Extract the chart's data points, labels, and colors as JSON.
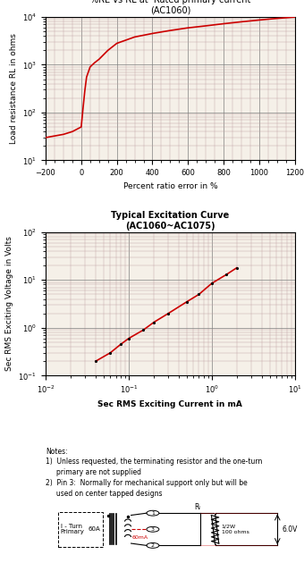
{
  "chart1_title": "%RE vs RL at  Rated primary current\n(AC1060)",
  "chart1_xlabel": "Percent ratio error in %",
  "chart1_ylabel": "Load resistance RL in ohms",
  "chart1_xlim": [
    -200,
    1200
  ],
  "chart1_ylim_log": [
    10,
    10000
  ],
  "chart1_curve_x": [
    -200,
    -100,
    -50,
    0,
    10,
    20,
    30,
    50,
    75,
    100,
    150,
    200,
    300,
    400,
    500,
    600,
    700,
    800,
    900,
    1000,
    1100,
    1200
  ],
  "chart1_curve_y": [
    30,
    35,
    40,
    50,
    120,
    280,
    550,
    900,
    1100,
    1300,
    2000,
    2800,
    3800,
    4500,
    5200,
    5900,
    6500,
    7200,
    7900,
    8600,
    9300,
    9900
  ],
  "chart2_title": "Typical Excitation Curve\n(AC1060~AC1075)",
  "chart2_xlabel": "Sec RMS Exciting Current in mA",
  "chart2_ylabel": "Sec RMS Exciting Voltage in Volts",
  "chart2_xlim_log": [
    0.01,
    10
  ],
  "chart2_ylim_log": [
    0.1,
    100
  ],
  "chart2_curve_x": [
    0.04,
    0.06,
    0.08,
    0.1,
    0.15,
    0.2,
    0.3,
    0.5,
    0.7,
    1.0,
    1.5,
    2.0
  ],
  "chart2_curve_y": [
    0.2,
    0.3,
    0.45,
    0.6,
    0.9,
    1.3,
    2.0,
    3.5,
    5.0,
    8.5,
    13,
    18
  ],
  "grid_major_color": "#808080",
  "grid_minor_color": "#c0a0a0",
  "curve_color": "#cc0000",
  "bg_color": "#f5f0e8",
  "notes_text": "Notes:\n1)  Unless requested, the terminating resistor and the one-turn\n     primary are not supplied\n2)  Pin 3:  Normally for mechanical support only but will be\n     used on center tapped designs",
  "fig_width": 3.4,
  "fig_height": 6.3
}
